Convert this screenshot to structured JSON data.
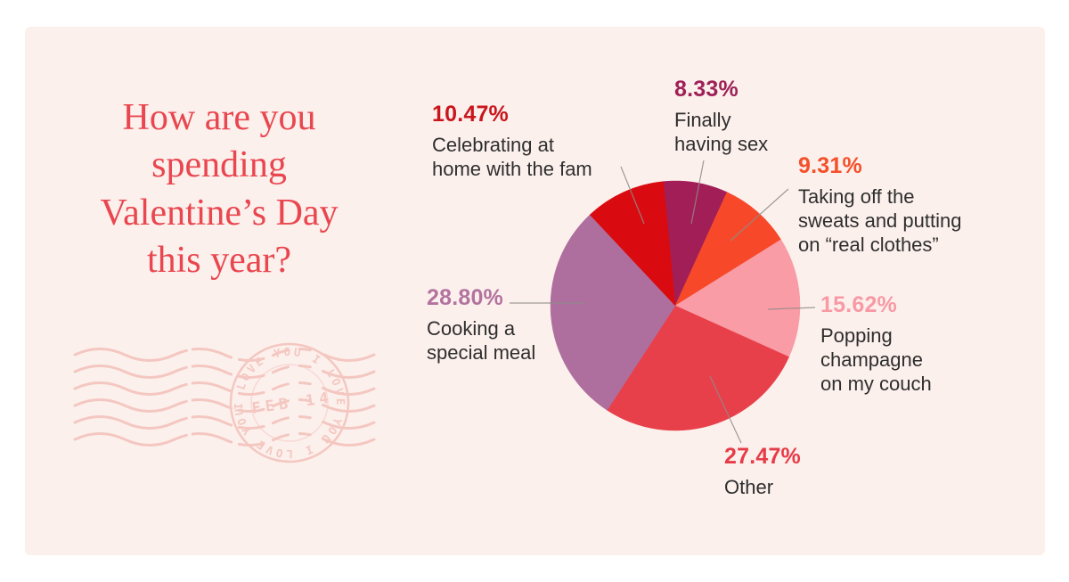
{
  "colors": {
    "page_bg": "#ffffff",
    "panel_bg": "#fcf0ec",
    "title_text": "#e9464f",
    "desc_text": "#2e2e2e",
    "leader_line": "#8f8b89",
    "stamp": "#f3c0ba"
  },
  "title": {
    "lines": [
      "How are you",
      "spending",
      "Valentine’s Day",
      "this year?"
    ]
  },
  "chart_data": {
    "type": "pie",
    "title": "How are you spending Valentine’s Day this year?",
    "total": 100,
    "start_angle_deg": -5.5,
    "legend_position": "callouts-around-pie",
    "slices": [
      {
        "name": "finally-having-sex",
        "value": 8.33,
        "pct_label": "8.33%",
        "color": "#a21e56",
        "pct_color": "#9e2056",
        "desc_lines": [
          "Finally",
          "having sex"
        ]
      },
      {
        "name": "real-clothes",
        "value": 9.31,
        "pct_label": "9.31%",
        "color": "#f7492a",
        "pct_color": "#f4502a",
        "desc_lines": [
          "Taking off the",
          "sweats and putting",
          "on “real clothes”"
        ]
      },
      {
        "name": "popping-champagne",
        "value": 15.62,
        "pct_label": "15.62%",
        "color": "#f99ca6",
        "pct_color": "#f89aa5",
        "desc_lines": [
          "Popping",
          "champagne",
          "on my couch"
        ]
      },
      {
        "name": "other",
        "value": 27.47,
        "pct_label": "27.47%",
        "color": "#e8404a",
        "pct_color": "#e73c48",
        "desc_lines": [
          "Other"
        ]
      },
      {
        "name": "cooking-special-meal",
        "value": 28.8,
        "pct_label": "28.80%",
        "color": "#ae6f9e",
        "pct_color": "#b3739f",
        "desc_lines": [
          "Cooking a",
          "special meal"
        ]
      },
      {
        "name": "home-with-fam",
        "value": 10.47,
        "pct_label": "10.47%",
        "color": "#d90b10",
        "pct_color": "#c9161d",
        "desc_lines": [
          "Celebrating at",
          "home with the fam"
        ]
      }
    ]
  },
  "stamp": {
    "date_text": "FEB 14",
    "ring_text": "I LOVE YOU   I LOVE YOU   I LOVE YOU"
  }
}
